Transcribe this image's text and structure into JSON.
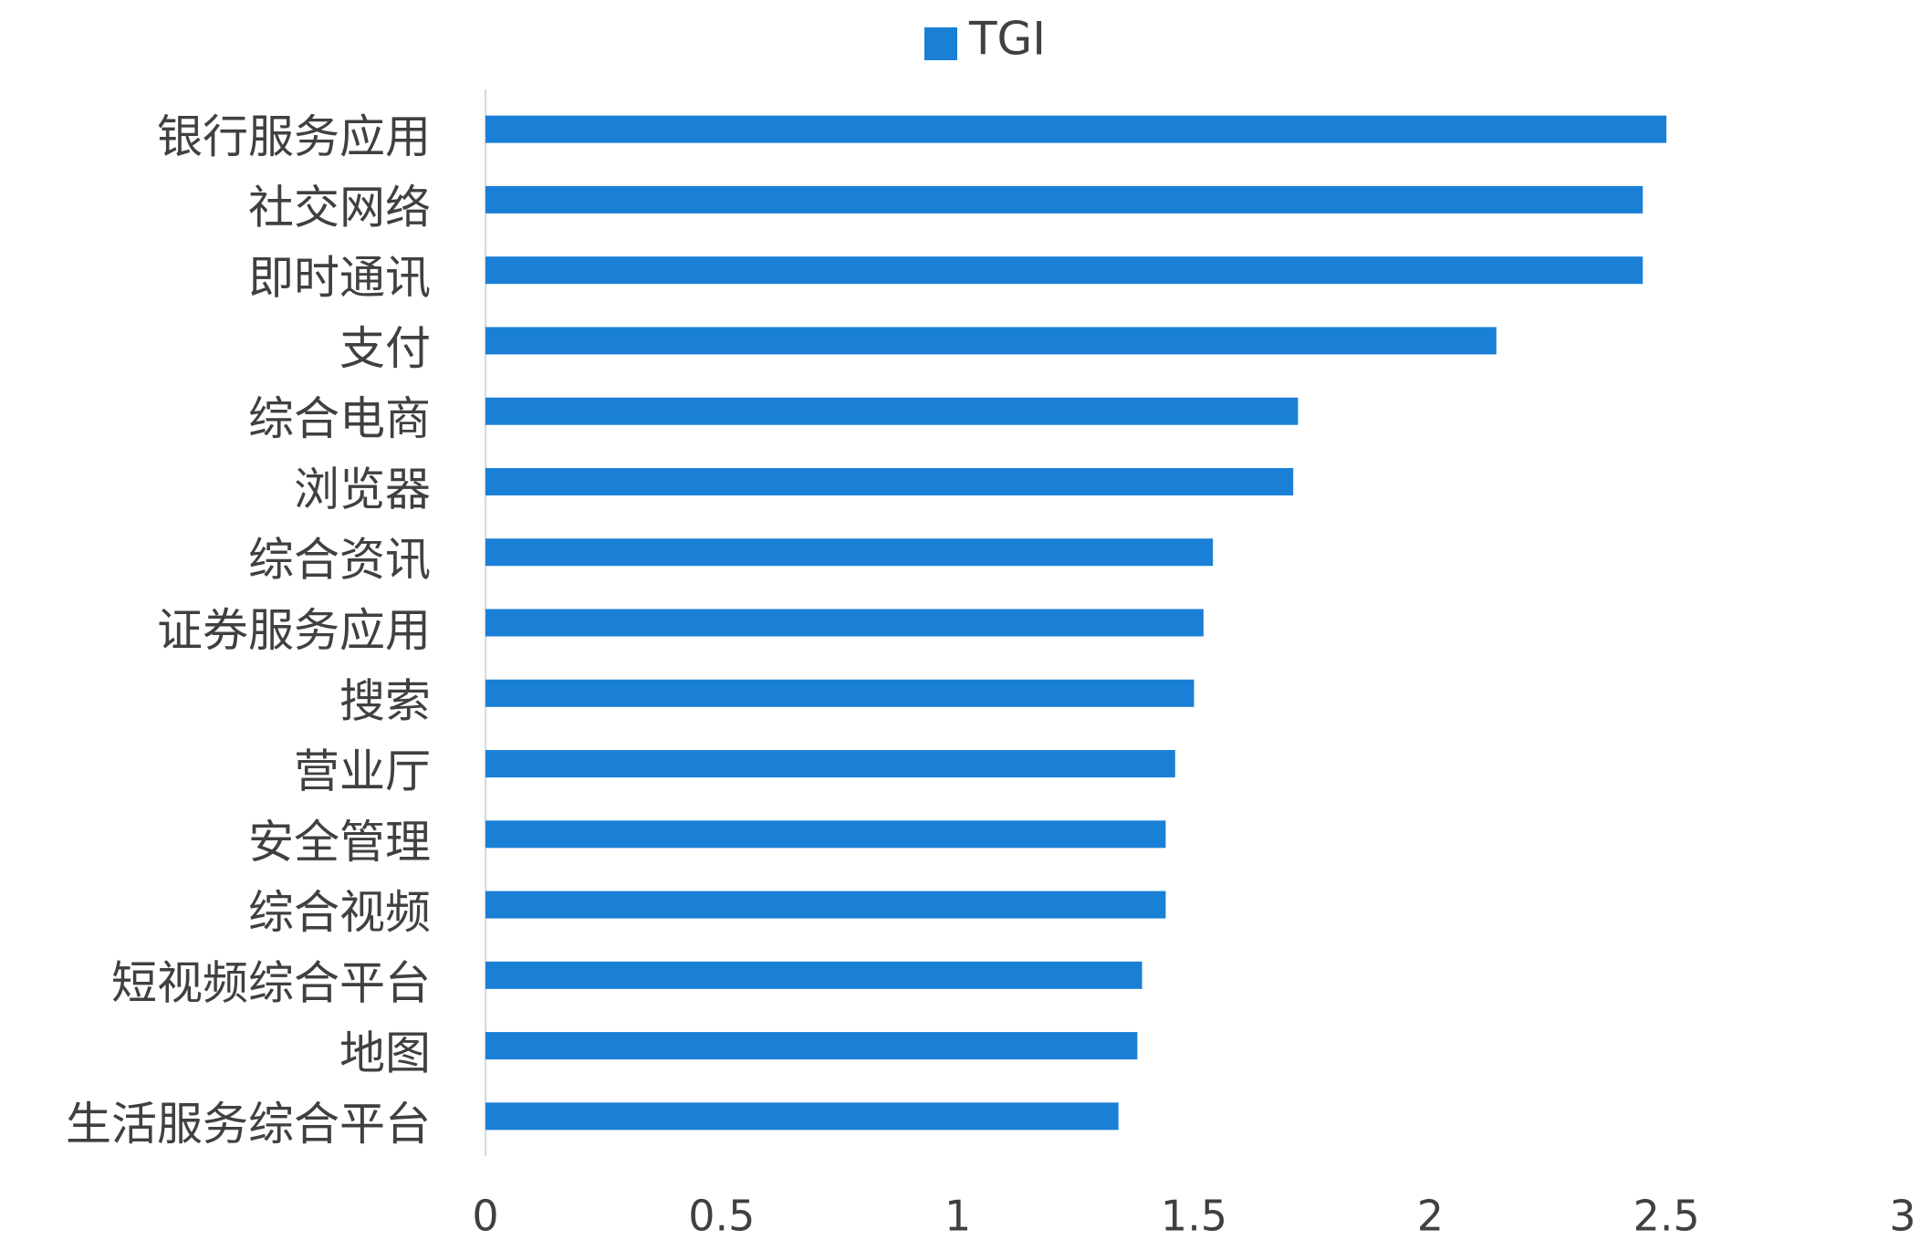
{
  "chart_data": {
    "type": "bar",
    "orientation": "horizontal",
    "categories": [
      "银行服务应用",
      "社交网络",
      "即时通讯",
      "支付",
      "综合电商",
      "浏览器",
      "综合资讯",
      "证券服务应用",
      "搜索",
      "营业厅",
      "安全管理",
      "综合视频",
      "短视频综合平台",
      "地图",
      "生活服务综合平台"
    ],
    "series": [
      {
        "name": "TGI",
        "color": "#1a80d6",
        "values": [
          2.5,
          2.45,
          2.45,
          2.14,
          1.72,
          1.71,
          1.54,
          1.52,
          1.5,
          1.46,
          1.44,
          1.44,
          1.39,
          1.38,
          1.34
        ]
      }
    ],
    "xlim": [
      0,
      3
    ],
    "xticks": [
      0,
      0.5,
      1,
      1.5,
      2,
      2.5,
      3
    ],
    "legend": "top",
    "grid": false
  }
}
